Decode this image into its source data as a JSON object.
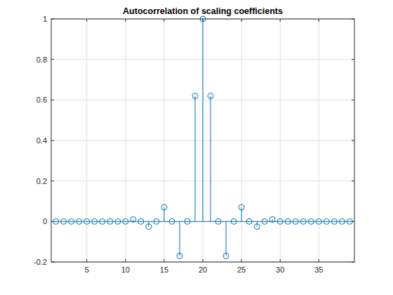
{
  "chart_data": {
    "type": "stem",
    "title": "Autocorrelation of scaling coefficients",
    "x": [
      1,
      2,
      3,
      4,
      5,
      6,
      7,
      8,
      9,
      10,
      11,
      12,
      13,
      14,
      15,
      16,
      17,
      18,
      19,
      20,
      21,
      22,
      23,
      24,
      25,
      26,
      27,
      28,
      29,
      30,
      31,
      32,
      33,
      34,
      35,
      36,
      37,
      38,
      39
    ],
    "values": [
      0,
      0,
      0,
      0,
      0,
      0,
      0,
      0,
      0,
      0,
      0.01,
      0,
      -0.025,
      0,
      0.07,
      0,
      -0.17,
      0,
      0.62,
      1,
      0.62,
      0,
      -0.17,
      0,
      0.07,
      0,
      -0.025,
      0,
      0.01,
      0,
      0,
      0,
      0,
      0,
      0,
      0,
      0,
      0,
      0
    ],
    "color": "#0072bd",
    "marker": "circle",
    "xlim": [
      0.4,
      39.6
    ],
    "xticks": [
      5,
      10,
      15,
      20,
      25,
      30,
      35
    ],
    "ylim": [
      -0.2,
      1
    ],
    "yticks": [
      -0.2,
      0,
      0.2,
      0.4,
      0.6,
      0.8,
      1
    ],
    "grid": true
  }
}
